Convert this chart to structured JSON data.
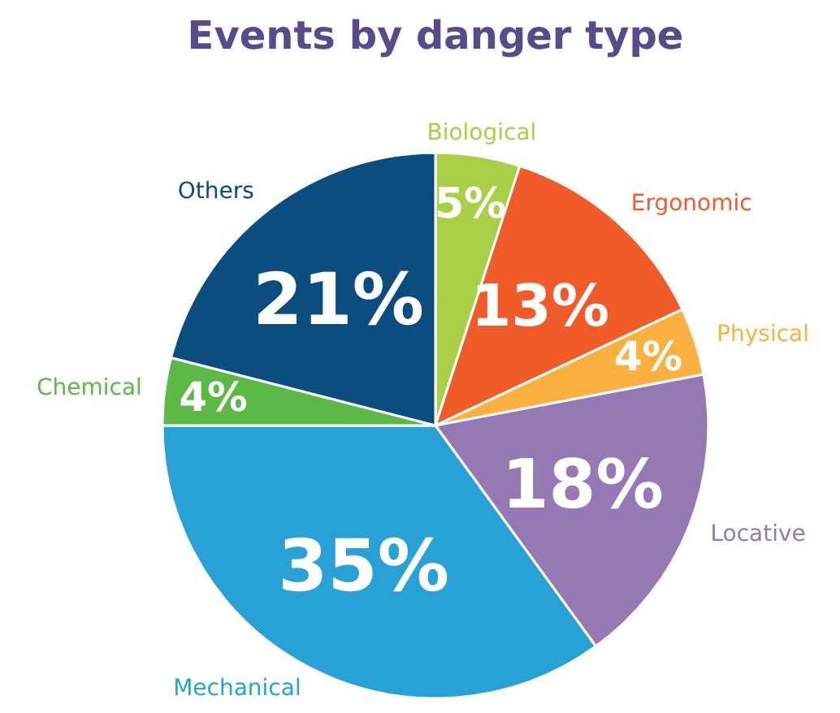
{
  "chart_data": {
    "type": "pie",
    "title": "Events by danger type",
    "categories": [
      "Biological",
      "Ergonomic",
      "Physical",
      "Locative",
      "Mechanical",
      "Chemical",
      "Others"
    ],
    "values": [
      5,
      13,
      4,
      18,
      35,
      4,
      21
    ],
    "colors": [
      "#a8cf45",
      "#f15a29",
      "#fbb040",
      "#9479b4",
      "#27a1d6",
      "#5cb946",
      "#0c4d80"
    ],
    "value_labels": [
      "5%",
      "13%",
      "4%",
      "18%",
      "35%",
      "4%",
      "21%"
    ]
  }
}
